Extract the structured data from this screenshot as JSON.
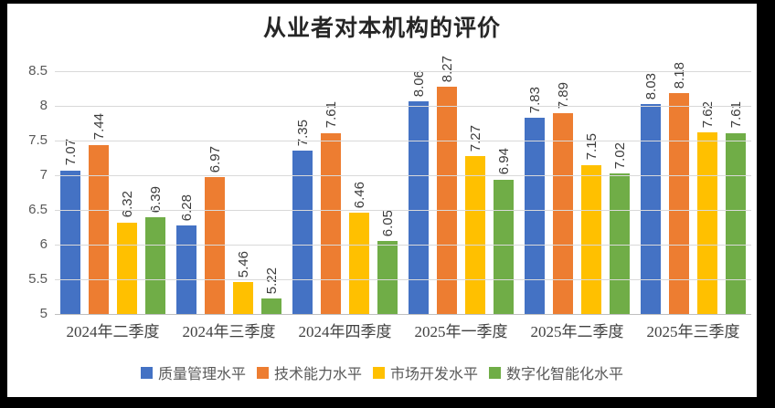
{
  "title": "从业者对本机构的评价",
  "chart_data": {
    "type": "bar",
    "title": "从业者对本机构的评价",
    "categories": [
      "2024年二季度",
      "2024年三季度",
      "2024年四季度",
      "2025年一季度",
      "2025年二季度",
      "2025年三季度"
    ],
    "series": [
      {
        "name": "质量管理水平",
        "color": "#4472C4",
        "values": [
          7.07,
          6.28,
          7.35,
          8.06,
          7.83,
          8.03
        ]
      },
      {
        "name": "技术能力水平",
        "color": "#ED7D31",
        "values": [
          7.44,
          6.97,
          7.61,
          8.27,
          7.89,
          8.18
        ]
      },
      {
        "name": "市场开发水平",
        "color": "#FFC000",
        "values": [
          6.32,
          5.46,
          6.46,
          7.27,
          7.15,
          7.62
        ]
      },
      {
        "name": "数字化智能化水平",
        "color": "#70AD47",
        "values": [
          6.39,
          5.22,
          6.05,
          6.94,
          7.02,
          7.61
        ]
      }
    ],
    "ylim": [
      5,
      8.5
    ],
    "y_ticks": [
      8.5,
      8,
      7.5,
      7,
      6.5,
      6,
      5.5,
      5
    ],
    "y_tick_labels": [
      "8.5",
      "8",
      "7.5",
      "7",
      "6.5",
      "6",
      "5.5",
      "5"
    ],
    "grid": true,
    "data_labels": true,
    "data_label_rotation": -90,
    "legend_position": "bottom",
    "gridline_color": "#D9D9D9",
    "axis_label_color": "#595959",
    "data_label_color": "#3B3B3B"
  }
}
